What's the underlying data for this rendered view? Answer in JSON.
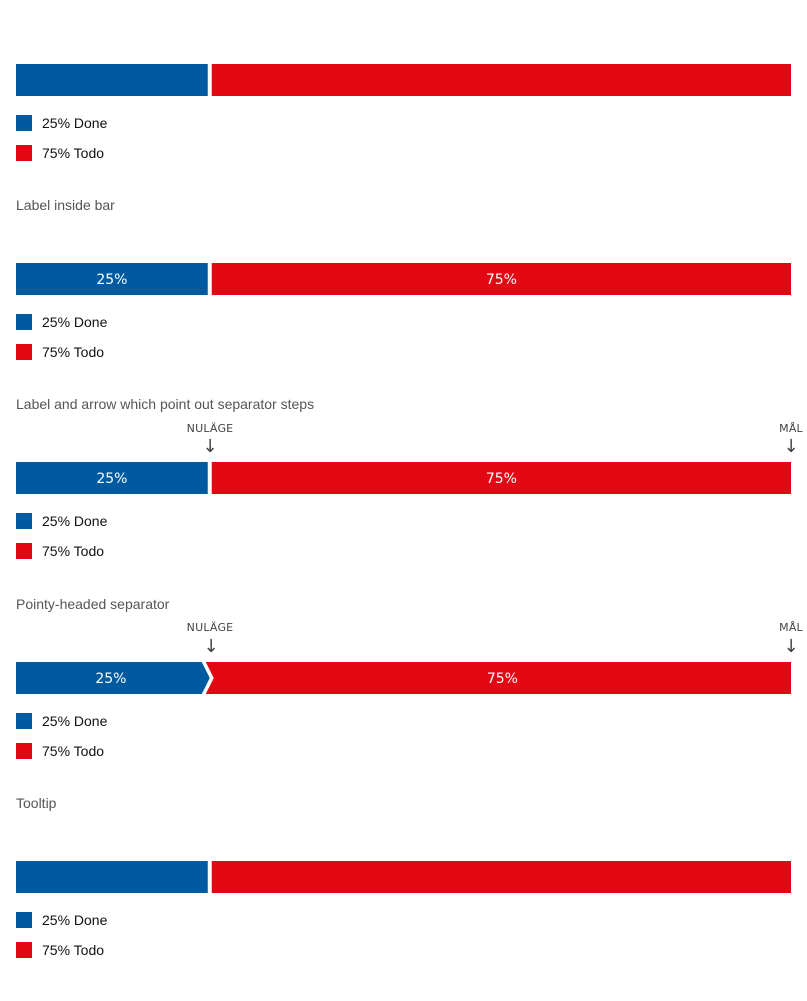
{
  "colors": {
    "done": "#005AA0",
    "todo": "#E30613",
    "separator": "#FFFFFF"
  },
  "legend": [
    {
      "label": "25% Done",
      "color": "#005AA0"
    },
    {
      "label": "75% Todo",
      "color": "#E30613"
    }
  ],
  "captions": {
    "label_inside": "Label inside bar",
    "arrow_steps": "Label and arrow which point out separator steps",
    "pointy": "Pointy-headed separator",
    "tooltip": "Tooltip"
  },
  "markers": {
    "current": "NULÄGE",
    "goal": "MÅL",
    "arrow": "↓"
  },
  "chart_data": [
    {
      "type": "bar",
      "orientation": "horizontal-stacked",
      "variant": "plain",
      "series": [
        {
          "name": "Done",
          "value": 25
        },
        {
          "name": "Todo",
          "value": 75
        }
      ]
    },
    {
      "type": "bar",
      "orientation": "horizontal-stacked",
      "variant": "label-inside",
      "series": [
        {
          "name": "Done",
          "value": 25,
          "label": "25%"
        },
        {
          "name": "Todo",
          "value": 75,
          "label": "75%"
        }
      ]
    },
    {
      "type": "bar",
      "orientation": "horizontal-stacked",
      "variant": "arrow-steps",
      "series": [
        {
          "name": "Done",
          "value": 25,
          "label": "25%"
        },
        {
          "name": "Todo",
          "value": 75,
          "label": "75%"
        }
      ]
    },
    {
      "type": "bar",
      "orientation": "horizontal-stacked",
      "variant": "pointy",
      "series": [
        {
          "name": "Done",
          "value": 25,
          "label": "25%"
        },
        {
          "name": "Todo",
          "value": 75,
          "label": "75%"
        }
      ]
    },
    {
      "type": "bar",
      "orientation": "horizontal-stacked",
      "variant": "tooltip",
      "series": [
        {
          "name": "Done",
          "value": 25
        },
        {
          "name": "Todo",
          "value": 75
        }
      ]
    }
  ]
}
